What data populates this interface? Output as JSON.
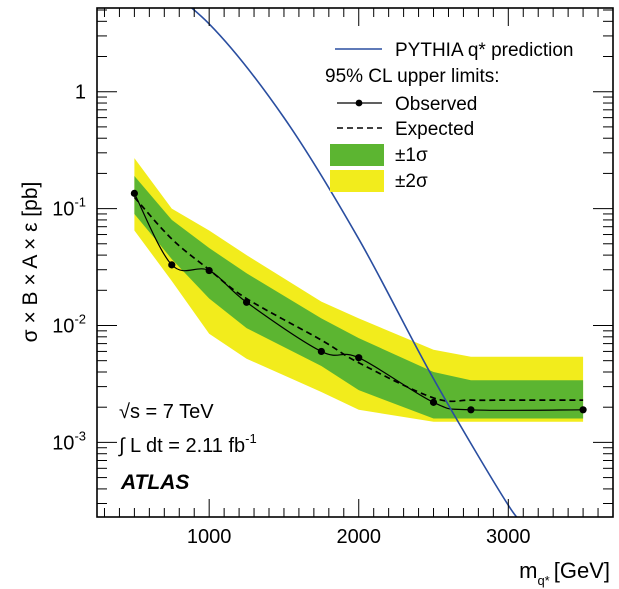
{
  "chart_data": {
    "type": "line",
    "xlabel": "m",
    "xlabel_sub": "q*",
    "xlabel_unit": "[GeV]",
    "ylabel": "σ × B × A × ε  [pb]",
    "x_range": [
      250,
      3700
    ],
    "y_range": [
      0.00023,
      5.2
    ],
    "y_scale": "log",
    "x_ticks": [
      1000,
      2000,
      3000
    ],
    "x_tick_labels": [
      "1000",
      "2000",
      "3000"
    ],
    "y_ticks": [
      {
        "value": 1,
        "base": "1",
        "exp": ""
      },
      {
        "value": 0.1,
        "base": "10",
        "exp": "-1"
      },
      {
        "value": 0.01,
        "base": "10",
        "exp": "-2"
      },
      {
        "value": 0.001,
        "base": "10",
        "exp": "-3"
      }
    ],
    "legend_position": "top-right",
    "legend": {
      "prediction": "PYTHIA q* prediction",
      "header": "95% CL upper limits:",
      "observed": "Observed",
      "expected": "Expected",
      "band1": "±1σ",
      "band2": "±2σ"
    },
    "annotations": {
      "sqrt_s": "√s = 7 TeV",
      "lumi_prefix": "∫ L dt = 2.11 fb",
      "lumi_exp": "-1",
      "experiment": "ATLAS"
    },
    "colors": {
      "band1": "#5cb531",
      "band2": "#f2ec1c",
      "prediction": "#2a4ea0",
      "observed": "#000000",
      "expected": "#000000"
    },
    "series": {
      "observed": {
        "x": [
          500,
          750,
          1000,
          1250,
          1750,
          2000,
          2500,
          2750,
          3500
        ],
        "y": [
          0.135,
          0.033,
          0.0295,
          0.0158,
          0.006,
          0.0053,
          0.0022,
          0.0019,
          0.0019
        ]
      },
      "expected": {
        "x": [
          500,
          750,
          1000,
          1250,
          1750,
          2000,
          2500,
          2750,
          3000,
          3500
        ],
        "y": [
          0.125,
          0.055,
          0.03,
          0.017,
          0.0075,
          0.0048,
          0.0024,
          0.0023,
          0.0023,
          0.0023
        ]
      },
      "band1": {
        "x": [
          500,
          750,
          1000,
          1250,
          1750,
          2000,
          2500,
          2750,
          3000,
          3500
        ],
        "lower": [
          0.09,
          0.037,
          0.017,
          0.0095,
          0.0045,
          0.0028,
          0.0016,
          0.0016,
          0.0016,
          0.0016
        ],
        "upper": [
          0.19,
          0.08,
          0.046,
          0.028,
          0.0115,
          0.0078,
          0.004,
          0.0034,
          0.0034,
          0.0034
        ]
      },
      "band2": {
        "x": [
          500,
          750,
          1000,
          1250,
          1750,
          2000,
          2500,
          2750,
          3000,
          3500
        ],
        "lower": [
          0.065,
          0.024,
          0.0085,
          0.0052,
          0.0027,
          0.0019,
          0.0015,
          0.0015,
          0.0015,
          0.0015
        ],
        "upper": [
          0.27,
          0.1,
          0.065,
          0.04,
          0.016,
          0.0115,
          0.0062,
          0.0054,
          0.0054,
          0.0054
        ]
      },
      "prediction": {
        "x": [
          500,
          1000,
          1500,
          2000,
          2500,
          3000,
          3100
        ],
        "y": [
          12,
          3.8,
          0.6,
          0.055,
          0.0035,
          0.00029,
          0.00022
        ]
      }
    }
  }
}
